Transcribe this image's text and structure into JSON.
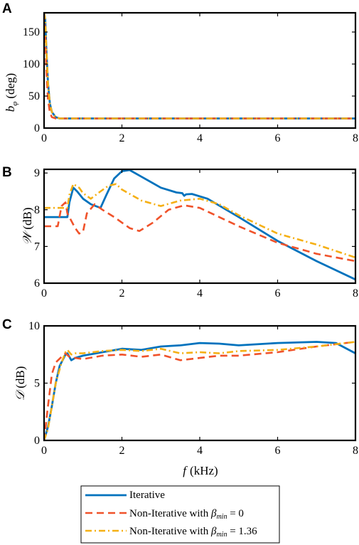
{
  "chart_data": [
    {
      "type": "line",
      "panel_label": "A",
      "ylabel_main": "b",
      "ylabel_sub": "φ",
      "ylabel_unit": "(deg)",
      "xlim": [
        0,
        8
      ],
      "ylim": [
        0,
        180
      ],
      "xticks": [
        0,
        2,
        4,
        6,
        8
      ],
      "yticks": [
        0,
        50,
        100,
        150
      ],
      "series": [
        {
          "name": "Iterative",
          "style": "solid",
          "color": "#0072BD",
          "points": [
            [
              0,
              180
            ],
            [
              0.03,
              170
            ],
            [
              0.06,
              120
            ],
            [
              0.1,
              70
            ],
            [
              0.15,
              38
            ],
            [
              0.2,
              25
            ],
            [
              0.3,
              17
            ],
            [
              0.4,
              15
            ],
            [
              0.6,
              15
            ],
            [
              8,
              15
            ]
          ]
        },
        {
          "name": "Non-Iterative with β_min = 0",
          "style": "dash",
          "color": "#F0522A",
          "points": [
            [
              0,
              180
            ],
            [
              0.03,
              150
            ],
            [
              0.06,
              90
            ],
            [
              0.1,
              45
            ],
            [
              0.15,
              24
            ],
            [
              0.2,
              17
            ],
            [
              0.3,
              15
            ],
            [
              8,
              15
            ]
          ]
        },
        {
          "name": "Non-Iterative with β_min = 1.36",
          "style": "dashdot",
          "color": "#F5B015",
          "points": [
            [
              0,
              180
            ],
            [
              0.03,
              170
            ],
            [
              0.06,
              120
            ],
            [
              0.1,
              70
            ],
            [
              0.15,
              38
            ],
            [
              0.2,
              25
            ],
            [
              0.3,
              17
            ],
            [
              0.4,
              15
            ],
            [
              0.6,
              15
            ],
            [
              8,
              15
            ]
          ]
        }
      ]
    },
    {
      "type": "line",
      "panel_label": "B",
      "ylabel_main": "𝒲",
      "ylabel_unit": "(dB)",
      "xlim": [
        0,
        8
      ],
      "ylim": [
        6,
        9.1
      ],
      "xticks": [
        0,
        2,
        4,
        6,
        8
      ],
      "yticks": [
        6,
        7,
        8,
        9
      ],
      "series": [
        {
          "name": "Iterative",
          "style": "solid",
          "color": "#0072BD",
          "points": [
            [
              0,
              7.8
            ],
            [
              0.6,
              7.8
            ],
            [
              0.65,
              8.2
            ],
            [
              0.75,
              8.6
            ],
            [
              0.85,
              8.5
            ],
            [
              1.0,
              8.3
            ],
            [
              1.2,
              8.15
            ],
            [
              1.45,
              8.05
            ],
            [
              1.6,
              8.4
            ],
            [
              1.8,
              8.85
            ],
            [
              2.0,
              9.05
            ],
            [
              2.2,
              9.08
            ],
            [
              2.5,
              8.9
            ],
            [
              3.0,
              8.6
            ],
            [
              3.4,
              8.47
            ],
            [
              3.55,
              8.45
            ],
            [
              3.6,
              8.38
            ],
            [
              3.65,
              8.42
            ],
            [
              3.8,
              8.43
            ],
            [
              4.2,
              8.3
            ],
            [
              5.0,
              7.8
            ],
            [
              6.0,
              7.15
            ],
            [
              7.0,
              6.6
            ],
            [
              8.0,
              6.1
            ]
          ]
        },
        {
          "name": "Non-Iterative with β_min = 0",
          "style": "dash",
          "color": "#F0522A",
          "points": [
            [
              0,
              7.55
            ],
            [
              0.35,
              7.55
            ],
            [
              0.45,
              8.1
            ],
            [
              0.55,
              8.2
            ],
            [
              0.6,
              7.9
            ],
            [
              0.7,
              7.7
            ],
            [
              0.8,
              7.5
            ],
            [
              0.9,
              7.35
            ],
            [
              1.0,
              7.4
            ],
            [
              1.1,
              7.9
            ],
            [
              1.3,
              8.15
            ],
            [
              1.5,
              8.0
            ],
            [
              1.8,
              7.8
            ],
            [
              2.2,
              7.5
            ],
            [
              2.45,
              7.42
            ],
            [
              2.8,
              7.65
            ],
            [
              3.2,
              8.0
            ],
            [
              3.6,
              8.12
            ],
            [
              4.0,
              8.05
            ],
            [
              5.0,
              7.55
            ],
            [
              6.0,
              7.1
            ],
            [
              7.0,
              6.8
            ],
            [
              8.0,
              6.6
            ]
          ]
        },
        {
          "name": "Non-Iterative with β_min = 1.36",
          "style": "dashdot",
          "color": "#F5B015",
          "points": [
            [
              0,
              8.05
            ],
            [
              0.6,
              8.05
            ],
            [
              0.65,
              8.4
            ],
            [
              0.75,
              8.7
            ],
            [
              0.9,
              8.6
            ],
            [
              1.0,
              8.45
            ],
            [
              1.2,
              8.3
            ],
            [
              1.45,
              8.5
            ],
            [
              1.65,
              8.65
            ],
            [
              1.85,
              8.7
            ],
            [
              2.0,
              8.55
            ],
            [
              2.5,
              8.25
            ],
            [
              3.0,
              8.1
            ],
            [
              3.5,
              8.25
            ],
            [
              4.0,
              8.3
            ],
            [
              4.5,
              8.15
            ],
            [
              5.0,
              7.85
            ],
            [
              6.0,
              7.35
            ],
            [
              7.0,
              7.05
            ],
            [
              8.0,
              6.7
            ]
          ]
        }
      ]
    },
    {
      "type": "line",
      "panel_label": "C",
      "ylabel_main": "𝒟",
      "ylabel_unit": "(dB)",
      "xlabel_var": "f",
      "xlabel_unit": "(kHz)",
      "xlim": [
        0,
        8
      ],
      "ylim": [
        0,
        10
      ],
      "xticks": [
        0,
        2,
        4,
        6,
        8
      ],
      "yticks": [
        0,
        5,
        10
      ],
      "series": [
        {
          "name": "Iterative",
          "style": "solid",
          "color": "#0072BD",
          "points": [
            [
              0,
              0
            ],
            [
              0.1,
              1.2
            ],
            [
              0.2,
              3.0
            ],
            [
              0.3,
              5.0
            ],
            [
              0.4,
              6.5
            ],
            [
              0.55,
              7.5
            ],
            [
              0.6,
              7.6
            ],
            [
              0.7,
              7.0
            ],
            [
              0.8,
              7.2
            ],
            [
              1.0,
              7.4
            ],
            [
              1.5,
              7.7
            ],
            [
              2.0,
              8.0
            ],
            [
              2.5,
              7.9
            ],
            [
              3.0,
              8.2
            ],
            [
              3.5,
              8.3
            ],
            [
              4.0,
              8.5
            ],
            [
              4.5,
              8.45
            ],
            [
              5.0,
              8.3
            ],
            [
              6.0,
              8.5
            ],
            [
              7.0,
              8.6
            ],
            [
              7.5,
              8.5
            ],
            [
              8.0,
              7.6
            ]
          ]
        },
        {
          "name": "Non-Iterative with β_min = 0",
          "style": "dash",
          "color": "#F0522A",
          "points": [
            [
              0,
              0
            ],
            [
              0.1,
              3.0
            ],
            [
              0.2,
              5.8
            ],
            [
              0.3,
              6.8
            ],
            [
              0.45,
              7.3
            ],
            [
              0.55,
              7.6
            ],
            [
              0.65,
              7.3
            ],
            [
              0.8,
              7.2
            ],
            [
              1.0,
              7.1
            ],
            [
              1.5,
              7.4
            ],
            [
              2.0,
              7.5
            ],
            [
              2.5,
              7.3
            ],
            [
              3.0,
              7.5
            ],
            [
              3.5,
              7.0
            ],
            [
              4.0,
              7.2
            ],
            [
              4.5,
              7.4
            ],
            [
              5.0,
              7.4
            ],
            [
              6.0,
              7.7
            ],
            [
              7.0,
              8.2
            ],
            [
              8.0,
              8.6
            ]
          ]
        },
        {
          "name": "Non-Iterative with β_min = 1.36",
          "style": "dashdot",
          "color": "#F5B015",
          "points": [
            [
              0,
              0
            ],
            [
              0.1,
              1.0
            ],
            [
              0.2,
              3.0
            ],
            [
              0.3,
              5.0
            ],
            [
              0.45,
              6.8
            ],
            [
              0.55,
              7.7
            ],
            [
              0.6,
              7.9
            ],
            [
              0.7,
              7.5
            ],
            [
              0.8,
              7.6
            ],
            [
              1.0,
              7.6
            ],
            [
              1.5,
              7.8
            ],
            [
              2.0,
              7.9
            ],
            [
              2.5,
              7.8
            ],
            [
              3.0,
              8.0
            ],
            [
              3.5,
              7.6
            ],
            [
              4.0,
              7.7
            ],
            [
              4.5,
              7.6
            ],
            [
              5.0,
              7.8
            ],
            [
              6.0,
              7.9
            ],
            [
              7.0,
              8.2
            ],
            [
              8.0,
              8.6
            ]
          ]
        }
      ]
    }
  ],
  "legend": [
    {
      "label": "Iterative",
      "style": "solid",
      "color": "#0072BD"
    },
    {
      "label_pre": "Non-Iterative with ",
      "beta": "β",
      "sub": "min",
      "label_post": " = 0",
      "style": "dash",
      "color": "#F0522A"
    },
    {
      "label_pre": "Non-Iterative with ",
      "beta": "β",
      "sub": "min",
      "label_post": " = 1.36",
      "style": "dashdot",
      "color": "#F5B015"
    }
  ]
}
